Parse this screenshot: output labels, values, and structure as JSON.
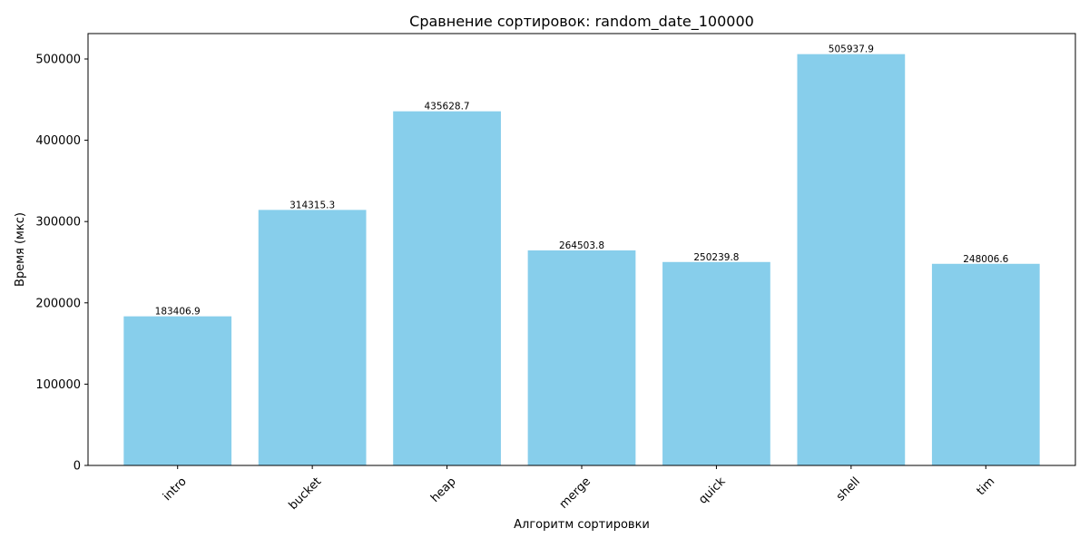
{
  "chart_data": {
    "type": "bar",
    "title": "Сравнение сортировок: random_date_100000",
    "xlabel": "Алгоритм сортировки",
    "ylabel": "Время (мкс)",
    "categories": [
      "intro",
      "bucket",
      "heap",
      "merge",
      "quick",
      "shell",
      "tim"
    ],
    "values": [
      183406.9,
      314315.3,
      435628.7,
      264503.8,
      250239.8,
      505937.9,
      248006.6
    ],
    "value_labels": [
      "183406.9",
      "314315.3",
      "435628.7",
      "264503.8",
      "250239.8",
      "505937.9",
      "248006.6"
    ],
    "ylim": [
      0,
      531234.8
    ],
    "yticks": [
      0,
      100000,
      200000,
      300000,
      400000,
      500000
    ],
    "ytick_labels": [
      "0",
      "100000",
      "200000",
      "300000",
      "400000",
      "500000"
    ],
    "xtick_rotation_deg": 45,
    "grid": false,
    "legend": "none",
    "bar_color": "#87ceeb",
    "axis_color": "#000000",
    "text_color": "#000000"
  }
}
